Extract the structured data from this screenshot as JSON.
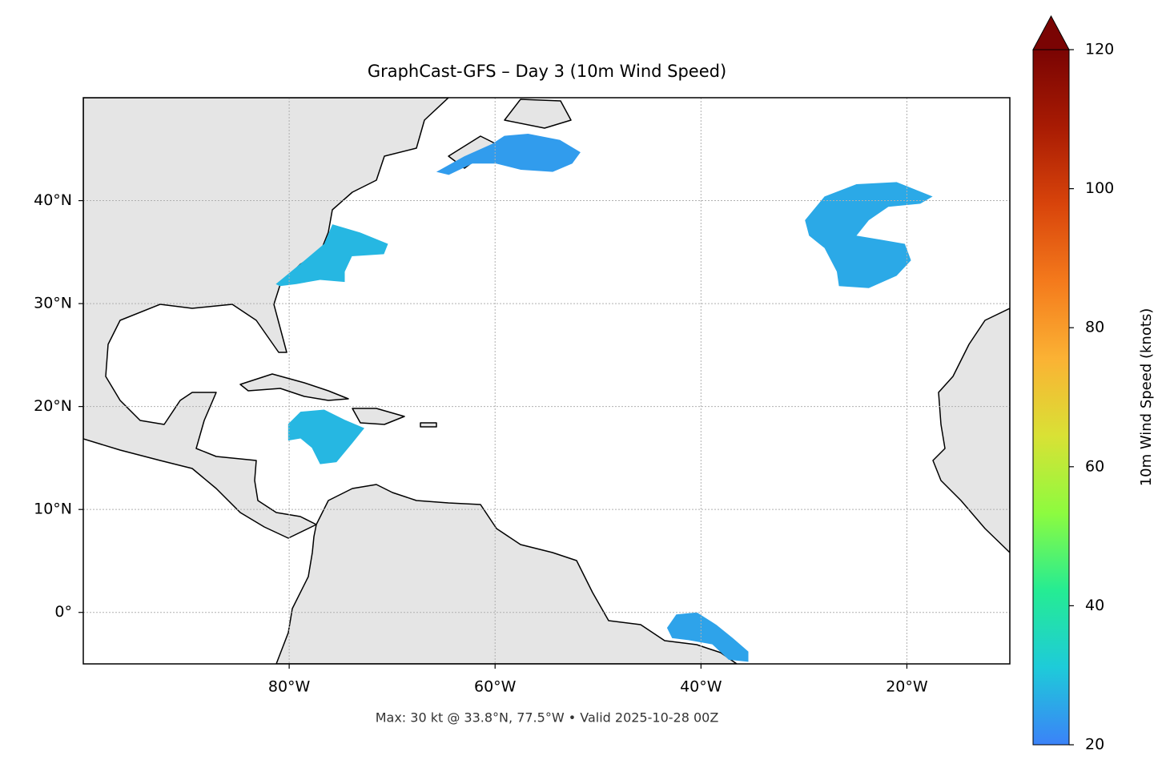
{
  "chart_data": {
    "type": "map",
    "title": "GraphCast-GFS – Day 3 (10m Wind Speed)",
    "annotation": "Max: 30 kt @ 33.8°N, 77.5°W • Valid 2025-10-28 00Z",
    "xlim": [
      -100,
      -10
    ],
    "ylim": [
      -5,
      50
    ],
    "xticks": [
      {
        "value": -80,
        "label": "80°W"
      },
      {
        "value": -60,
        "label": "60°W"
      },
      {
        "value": -40,
        "label": "40°W"
      },
      {
        "value": -20,
        "label": "20°W"
      }
    ],
    "yticks": [
      {
        "value": 0,
        "label": "0°"
      },
      {
        "value": 10,
        "label": "10°N"
      },
      {
        "value": 20,
        "label": "20°N"
      },
      {
        "value": 30,
        "label": "30°N"
      },
      {
        "value": 40,
        "label": "40°N"
      }
    ],
    "grid": true,
    "colorbar": {
      "label": "10m Wind Speed (knots)",
      "lim": [
        20,
        120
      ],
      "ticks": [
        20,
        40,
        60,
        80,
        100,
        120
      ],
      "extend": "max",
      "colors": [
        "#3b82f8",
        "#1ecbd9",
        "#25ec93",
        "#8dfb3f",
        "#d9e135",
        "#fbb234",
        "#f47a1c",
        "#d8440b",
        "#a81b03",
        "#7a0403"
      ]
    },
    "wind_areas": [
      {
        "value": 24,
        "points": [
          [
            -65.7,
            42.8
          ],
          [
            -63.0,
            44.3
          ],
          [
            -60.3,
            45.5
          ],
          [
            -59.1,
            46.3
          ],
          [
            -56.8,
            46.5
          ],
          [
            -53.7,
            45.9
          ],
          [
            -51.7,
            44.7
          ],
          [
            -52.5,
            43.6
          ],
          [
            -54.4,
            42.8
          ],
          [
            -57.5,
            43.0
          ],
          [
            -59.9,
            43.6
          ],
          [
            -62.2,
            43.6
          ],
          [
            -64.5,
            42.5
          ]
        ]
      },
      {
        "value": 28,
        "points": [
          [
            -81.3,
            31.9
          ],
          [
            -78.5,
            34.2
          ],
          [
            -76.6,
            35.8
          ],
          [
            -75.8,
            37.7
          ],
          [
            -73.1,
            36.9
          ],
          [
            -70.4,
            35.8
          ],
          [
            -70.8,
            34.8
          ],
          [
            -73.9,
            34.6
          ],
          [
            -74.6,
            33.1
          ],
          [
            -74.6,
            32.1
          ],
          [
            -77.0,
            32.3
          ],
          [
            -79.3,
            31.9
          ],
          [
            -80.9,
            31.7
          ]
        ]
      },
      {
        "value": 28,
        "points": [
          [
            -80.1,
            18.3
          ],
          [
            -78.9,
            19.5
          ],
          [
            -76.6,
            19.7
          ],
          [
            -74.6,
            18.7
          ],
          [
            -72.7,
            17.9
          ],
          [
            -73.9,
            16.4
          ],
          [
            -75.4,
            14.6
          ],
          [
            -77.0,
            14.4
          ],
          [
            -77.8,
            16.0
          ],
          [
            -78.9,
            16.9
          ],
          [
            -80.1,
            16.7
          ]
        ]
      },
      {
        "value": 26,
        "points": [
          [
            -29.9,
            38.1
          ],
          [
            -28.0,
            40.4
          ],
          [
            -24.9,
            41.6
          ],
          [
            -21.0,
            41.8
          ],
          [
            -17.5,
            40.4
          ],
          [
            -18.7,
            39.7
          ],
          [
            -21.8,
            39.4
          ],
          [
            -23.7,
            38.1
          ],
          [
            -24.9,
            36.6
          ],
          [
            -22.5,
            36.2
          ],
          [
            -20.2,
            35.8
          ],
          [
            -19.6,
            34.2
          ],
          [
            -21.0,
            32.7
          ],
          [
            -23.7,
            31.5
          ],
          [
            -26.6,
            31.7
          ],
          [
            -26.8,
            33.1
          ],
          [
            -28.0,
            35.4
          ],
          [
            -29.5,
            36.6
          ]
        ]
      },
      {
        "value": 25,
        "points": [
          [
            -43.3,
            -1.5
          ],
          [
            -42.4,
            -0.2
          ],
          [
            -40.4,
            0.0
          ],
          [
            -38.5,
            -1.2
          ],
          [
            -36.9,
            -2.5
          ],
          [
            -35.4,
            -3.8
          ],
          [
            -35.4,
            -4.8
          ],
          [
            -37.3,
            -4.6
          ],
          [
            -38.9,
            -3.1
          ],
          [
            -41.2,
            -2.7
          ],
          [
            -42.8,
            -2.5
          ]
        ]
      }
    ]
  }
}
